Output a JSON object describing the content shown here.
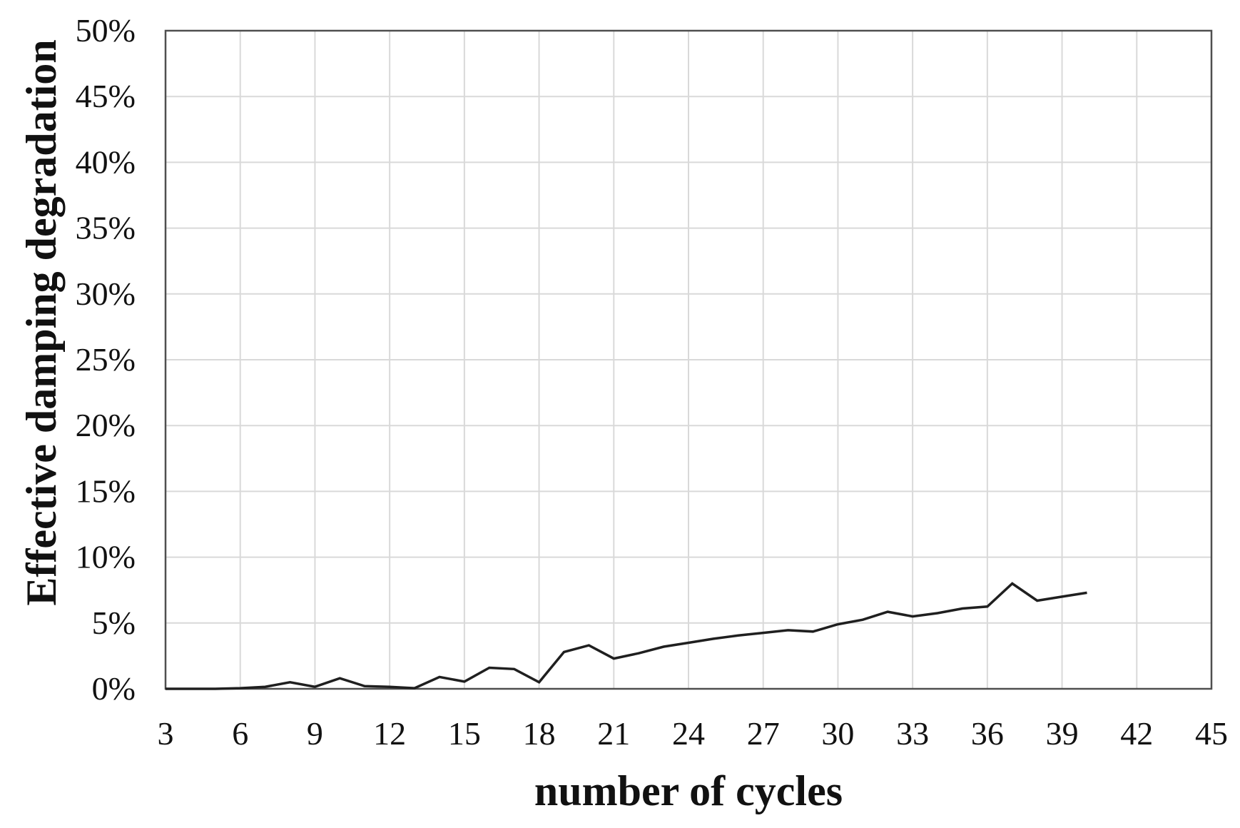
{
  "figure": {
    "background_color": "#ffffff",
    "line_color": "#1f1f1f",
    "grid_color": "#d9d9d9",
    "border_color": "#4f4f4f",
    "text_color": "#111111"
  },
  "chart_data": {
    "type": "line",
    "title": "",
    "xlabel": "number of cycles",
    "ylabel": "Effective damping degradation",
    "grid": "on",
    "legend": "none",
    "x_axis": {
      "min": 3,
      "max": 45,
      "tick_step": 3,
      "tick_labels": [
        "3",
        "6",
        "9",
        "12",
        "15",
        "18",
        "21",
        "24",
        "27",
        "30",
        "33",
        "36",
        "39",
        "42",
        "45"
      ]
    },
    "y_axis": {
      "min": 0,
      "max": 50,
      "tick_step": 5,
      "unit": "percent",
      "tick_labels": [
        "0%",
        "5%",
        "10%",
        "15%",
        "20%",
        "25%",
        "30%",
        "35%",
        "40%",
        "45%",
        "50%"
      ]
    },
    "series": [
      {
        "name": "effective-damping-degradation",
        "x": [
          3,
          4,
          5,
          6,
          7,
          8,
          9,
          10,
          11,
          12,
          13,
          14,
          15,
          16,
          17,
          18,
          19,
          20,
          21,
          22,
          23,
          24,
          25,
          26,
          27,
          28,
          29,
          30,
          31,
          32,
          33,
          34,
          35,
          36,
          37,
          38,
          39,
          40
        ],
        "y_percent": [
          0,
          0,
          0,
          0.05,
          0.15,
          0.5,
          0.15,
          0.8,
          0.2,
          0.15,
          0.05,
          0.9,
          0.55,
          1.6,
          1.5,
          0.5,
          2.8,
          3.3,
          2.3,
          2.7,
          3.2,
          3.5,
          3.8,
          4.05,
          4.25,
          4.45,
          4.35,
          4.9,
          5.25,
          5.85,
          5.5,
          5.75,
          6.1,
          6.25,
          8.0,
          6.7,
          7.0,
          7.3
        ]
      }
    ]
  }
}
